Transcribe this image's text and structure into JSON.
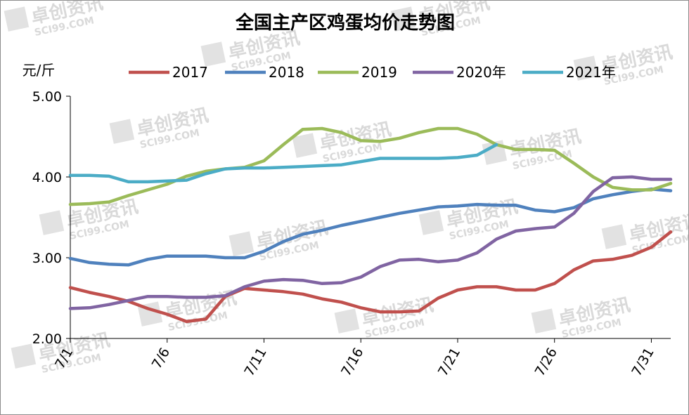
{
  "chart_data": {
    "type": "line",
    "title": "全国主产区鸡蛋均价走势图",
    "ylabel": "元/斤",
    "xlabel": "",
    "ylim": [
      2,
      5
    ],
    "yticks": [
      "5.00",
      "4.00",
      "3.00",
      "2.00"
    ],
    "x": [
      "7/1",
      "7/2",
      "7/3",
      "7/4",
      "7/5",
      "7/6",
      "7/7",
      "7/8",
      "7/9",
      "7/10",
      "7/11",
      "7/12",
      "7/13",
      "7/14",
      "7/15",
      "7/16",
      "7/17",
      "7/18",
      "7/19",
      "7/20",
      "7/21",
      "7/22",
      "7/23",
      "7/24",
      "7/25",
      "7/26",
      "7/27",
      "7/28",
      "7/29",
      "7/30",
      "7/31",
      "8/1"
    ],
    "xticks": [
      "7/1",
      "7/6",
      "7/11",
      "7/16",
      "7/21",
      "7/26",
      "7/31"
    ],
    "legend_position": "top",
    "grid": false,
    "series": [
      {
        "name": "2017",
        "color": "#c0504d",
        "values": [
          2.63,
          2.57,
          2.52,
          2.46,
          2.37,
          2.3,
          2.21,
          2.24,
          2.52,
          2.62,
          2.6,
          2.58,
          2.55,
          2.49,
          2.45,
          2.38,
          2.33,
          2.33,
          2.34,
          2.5,
          2.6,
          2.64,
          2.64,
          2.6,
          2.6,
          2.68,
          2.85,
          2.96,
          2.98,
          3.03,
          3.13,
          3.32
        ]
      },
      {
        "name": "2018",
        "color": "#4f81bd",
        "values": [
          2.99,
          2.94,
          2.92,
          2.91,
          2.98,
          3.02,
          3.02,
          3.02,
          3.0,
          3.0,
          3.08,
          3.2,
          3.29,
          3.34,
          3.4,
          3.45,
          3.5,
          3.55,
          3.59,
          3.63,
          3.64,
          3.66,
          3.65,
          3.65,
          3.59,
          3.57,
          3.62,
          3.73,
          3.78,
          3.82,
          3.85,
          3.83
        ]
      },
      {
        "name": "2019",
        "color": "#9bbb59",
        "values": [
          3.66,
          3.67,
          3.69,
          3.77,
          3.84,
          3.91,
          4.01,
          4.07,
          4.1,
          4.12,
          4.2,
          4.4,
          4.59,
          4.6,
          4.55,
          4.45,
          4.44,
          4.48,
          4.55,
          4.6,
          4.6,
          4.53,
          4.4,
          4.34,
          4.34,
          4.33,
          4.17,
          4.0,
          3.87,
          3.84,
          3.84,
          3.92
        ]
      },
      {
        "name": "2020年",
        "color": "#8064a2",
        "values": [
          2.37,
          2.38,
          2.42,
          2.47,
          2.52,
          2.52,
          2.51,
          2.51,
          2.53,
          2.64,
          2.71,
          2.73,
          2.72,
          2.68,
          2.69,
          2.76,
          2.89,
          2.97,
          2.98,
          2.95,
          2.97,
          3.06,
          3.23,
          3.33,
          3.36,
          3.38,
          3.55,
          3.82,
          3.99,
          4.0,
          3.97,
          3.97
        ]
      },
      {
        "name": "2021年",
        "color": "#4bacc6",
        "values": [
          4.02,
          4.02,
          4.01,
          3.94,
          3.94,
          3.95,
          3.96,
          4.04,
          4.1,
          4.11,
          4.11,
          4.12,
          4.13,
          4.14,
          4.15,
          4.19,
          4.23,
          4.23,
          4.23,
          4.23,
          4.24,
          4.27,
          4.4,
          null,
          null,
          null,
          null,
          null,
          null,
          null,
          null,
          null
        ]
      }
    ],
    "watermark": [
      "卓创资讯",
      "SCI99.COM"
    ]
  }
}
